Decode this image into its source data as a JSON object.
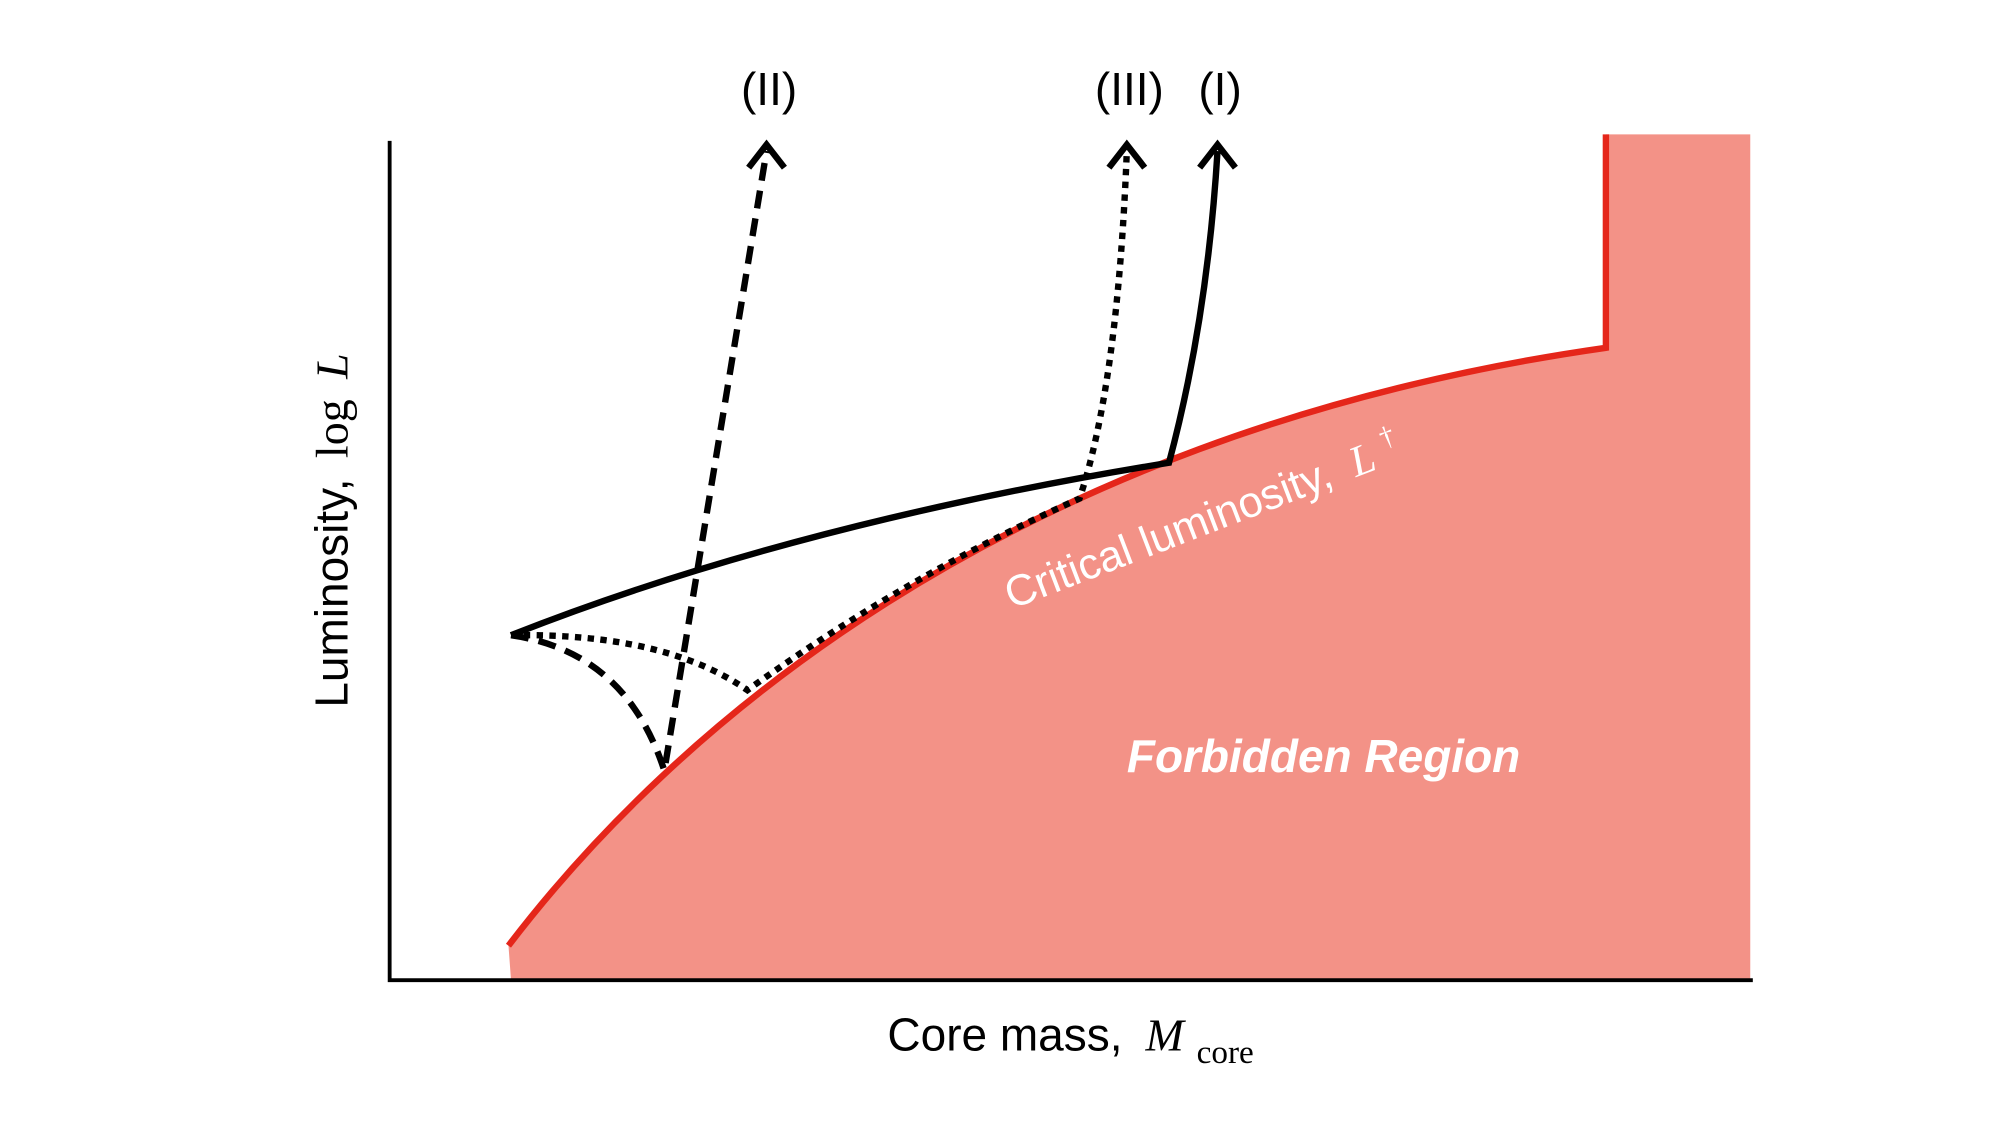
{
  "arrow_labels": [
    "(II)",
    "(III)",
    "(I)"
  ],
  "y_axis": {
    "label": "Luminosity,",
    "math_func": "log",
    "math_var": "L"
  },
  "x_axis": {
    "label": "Core mass,",
    "math_var": "M",
    "math_sub": "core"
  },
  "critical_curve": {
    "label": "Critical luminosity,",
    "math_var": "L",
    "math_sup": "†"
  },
  "region": {
    "label": "Forbidden Region"
  }
}
